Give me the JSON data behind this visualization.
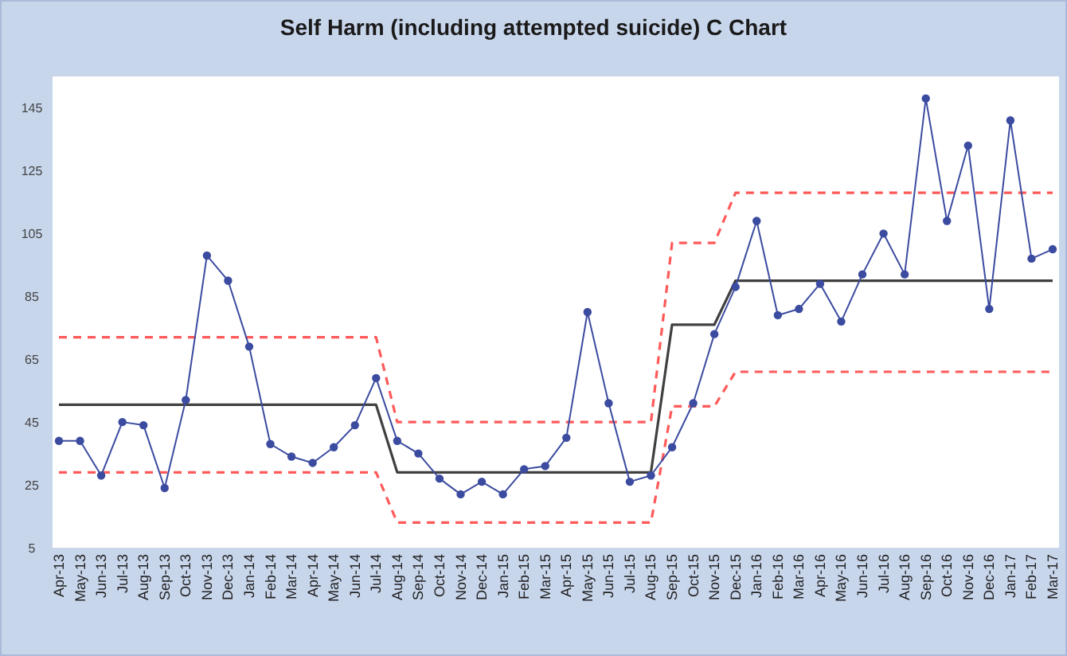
{
  "chart_data": {
    "type": "line",
    "title": "Self Harm (including attempted suicide) C Chart",
    "categories": [
      "Apr-13",
      "May-13",
      "Jun-13",
      "Jul-13",
      "Aug-13",
      "Sep-13",
      "Oct-13",
      "Nov-13",
      "Dec-13",
      "Jan-14",
      "Feb-14",
      "Mar-14",
      "Apr-14",
      "May-14",
      "Jun-14",
      "Jul-14",
      "Aug-14",
      "Sep-14",
      "Oct-14",
      "Nov-14",
      "Dec-14",
      "Jan-15",
      "Feb-15",
      "Mar-15",
      "Apr-15",
      "May-15",
      "Jun-15",
      "Jul-15",
      "Aug-15",
      "Sep-15",
      "Oct-15",
      "Nov-15",
      "Dec-15",
      "Jan-16",
      "Feb-16",
      "Mar-16",
      "Apr-16",
      "May-16",
      "Jun-16",
      "Jul-16",
      "Aug-16",
      "Sep-16",
      "Oct-16",
      "Nov-16",
      "Dec-16",
      "Jan-17",
      "Feb-17",
      "Mar-17"
    ],
    "series": [
      {
        "color": "#3b4ba0",
        "marker": "circle",
        "line_style": "solid",
        "values": [
          39,
          39,
          28,
          45,
          44,
          24,
          52,
          98,
          90,
          69,
          38,
          34,
          32,
          37,
          44,
          59,
          39,
          35,
          27,
          22,
          26,
          22,
          30,
          31,
          40,
          80,
          51,
          26,
          28,
          37,
          51,
          73,
          88,
          109,
          79,
          81,
          89,
          77,
          92,
          105,
          92,
          148,
          109,
          133,
          81,
          141,
          97,
          100
        ]
      },
      {
        "color": "#404040",
        "marker": "none",
        "line_style": "solid",
        "values": [
          50.5,
          50.5,
          50.5,
          50.5,
          50.5,
          50.5,
          50.5,
          50.5,
          50.5,
          50.5,
          50.5,
          50.5,
          50.5,
          50.5,
          50.5,
          50.5,
          29,
          29,
          29,
          29,
          29,
          29,
          29,
          29,
          29,
          29,
          29,
          29,
          29,
          76,
          76,
          76,
          90,
          90,
          90,
          90,
          90,
          90,
          90,
          90,
          90,
          90,
          90,
          90,
          90,
          90,
          90,
          90
        ]
      },
      {
        "color": "#ff5a5a",
        "marker": "none",
        "line_style": "dashed",
        "values": [
          72,
          72,
          72,
          72,
          72,
          72,
          72,
          72,
          72,
          72,
          72,
          72,
          72,
          72,
          72,
          72,
          45,
          45,
          45,
          45,
          45,
          45,
          45,
          45,
          45,
          45,
          45,
          45,
          45,
          102,
          102,
          102,
          118,
          118,
          118,
          118,
          118,
          118,
          118,
          118,
          118,
          118,
          118,
          118,
          118,
          118,
          118,
          118
        ]
      },
      {
        "color": "#ff5a5a",
        "marker": "none",
        "line_style": "dashed",
        "values": [
          29,
          29,
          29,
          29,
          29,
          29,
          29,
          29,
          29,
          29,
          29,
          29,
          29,
          29,
          29,
          29,
          13,
          13,
          13,
          13,
          13,
          13,
          13,
          13,
          13,
          13,
          13,
          13,
          13,
          50,
          50,
          50,
          61,
          61,
          61,
          61,
          61,
          61,
          61,
          61,
          61,
          61,
          61,
          61,
          61,
          61,
          61,
          61
        ]
      }
    ],
    "ylim": [
      5,
      155
    ],
    "yticks": [
      5,
      25,
      45,
      65,
      85,
      105,
      125,
      145
    ],
    "grid": false
  }
}
